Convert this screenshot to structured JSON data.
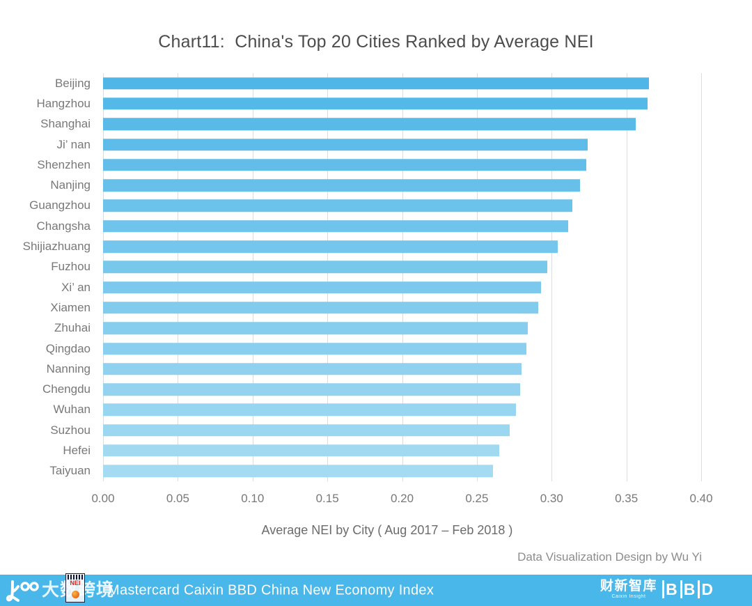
{
  "title": "Chart11:  China's Top 20 Cities Ranked by Average NEI",
  "chart_data": {
    "type": "bar",
    "orientation": "horizontal",
    "categories": [
      "Beijing",
      "Hangzhou",
      "Shanghai",
      "Ji’ nan",
      "Shenzhen",
      "Nanjing",
      "Guangzhou",
      "Changsha",
      "Shijiazhuang",
      "Fuzhou",
      "Xi’ an",
      "Xiamen",
      "Zhuhai",
      "Qingdao",
      "Nanning",
      "Chengdu",
      "Wuhan",
      "Suzhou",
      "Hefei",
      "Taiyuan"
    ],
    "values": [
      0.365,
      0.364,
      0.356,
      0.324,
      0.323,
      0.319,
      0.314,
      0.311,
      0.304,
      0.297,
      0.293,
      0.291,
      0.284,
      0.283,
      0.28,
      0.279,
      0.276,
      0.272,
      0.265,
      0.261
    ],
    "title": "Chart11:  China's Top 20 Cities Ranked by Average NEI",
    "xlabel": "Average NEI by City ( Aug 2017 – Feb 2018 )",
    "ylabel": "",
    "xlim": [
      0.0,
      0.4
    ],
    "x_ticks": [
      "0.00",
      "0.05",
      "0.10",
      "0.15",
      "0.20",
      "0.25",
      "0.30",
      "0.35",
      "0.40"
    ],
    "grid": true,
    "legend": false,
    "bar_color_start": "#50B6E7",
    "bar_color_end": "#A5DBF2",
    "gridline_color": "#dcdcdc"
  },
  "credit": "Data Visualization Design by Wu Yi",
  "footer": {
    "bg_color": "#49b7e9",
    "brand_cn": "大数跨境",
    "nei_badge_label": "NEI",
    "bar_title": "Mastercard Caixin BBD China New Economy Index",
    "caixin_cn": "财新智库",
    "caixin_en": "Caixin Insight",
    "bbd_letters": [
      "B",
      "B",
      "D"
    ]
  }
}
